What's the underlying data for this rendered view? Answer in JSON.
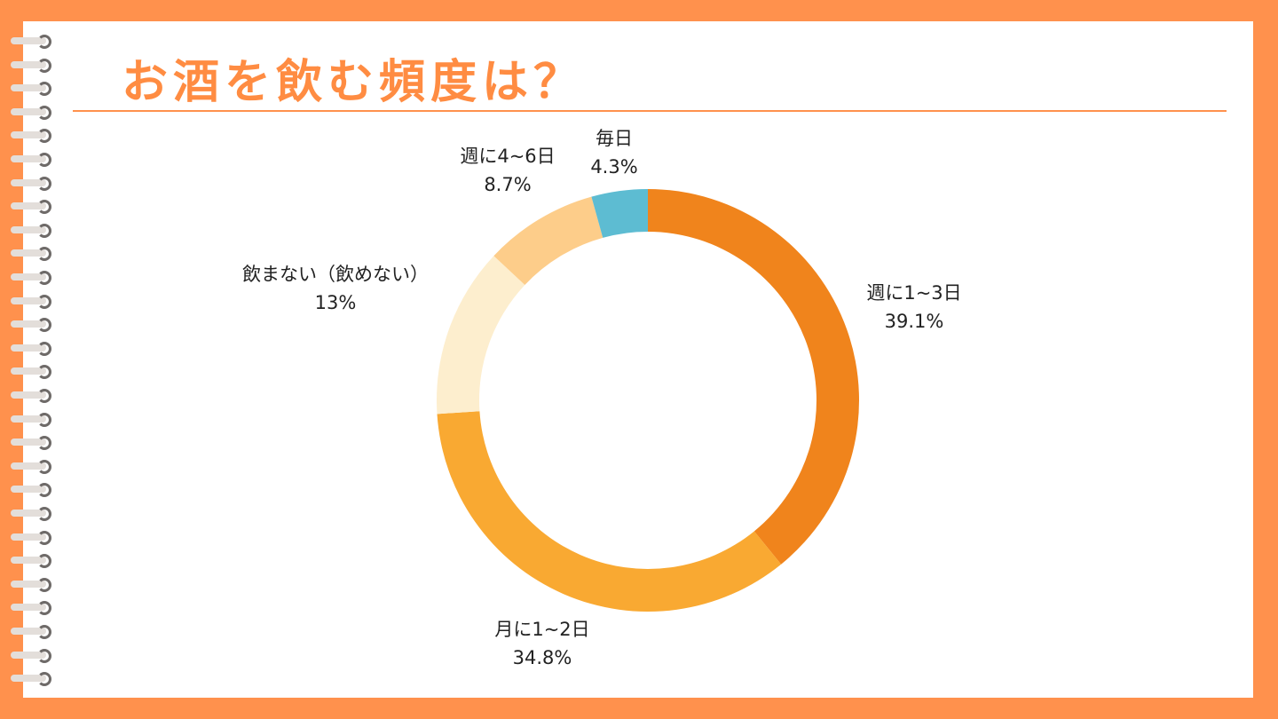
{
  "chart_data": {
    "type": "pie",
    "variant": "donut",
    "title": "お酒を飲む頻度は？",
    "slices": [
      {
        "label": "週に1~3日",
        "value": 39.1,
        "display": "39.1%",
        "color": "#F0841C"
      },
      {
        "label": "月に1~2日",
        "value": 34.8,
        "display": "34.8%",
        "color": "#F9A932"
      },
      {
        "label": "飲まない（飲めない）",
        "value": 13,
        "display": "13%",
        "color": "#FDEECE"
      },
      {
        "label": "週に4~6日",
        "value": 8.7,
        "display": "8.7%",
        "color": "#FDCD8A"
      },
      {
        "label": "毎日",
        "value": 4.3,
        "display": "4.3%",
        "color": "#5DBCD2"
      }
    ],
    "start": "top",
    "direction": "clockwise",
    "legend": "none"
  },
  "colors": {
    "frame": "#FF914D",
    "title": "#FF8C42"
  }
}
